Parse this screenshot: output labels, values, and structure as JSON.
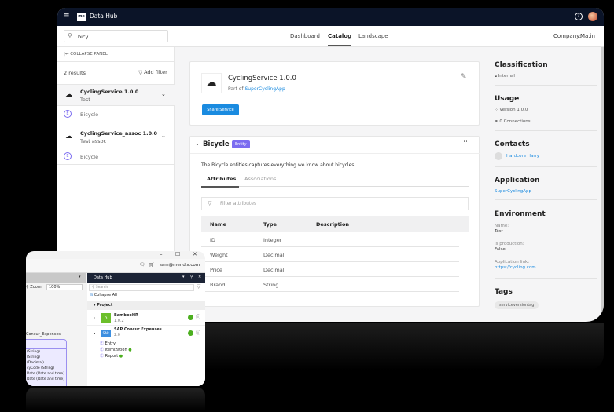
{
  "app": {
    "title": "Data Hub",
    "logo": "mx"
  },
  "search": {
    "value": "bicy"
  },
  "nav": {
    "tabs": [
      {
        "label": "Dashboard"
      },
      {
        "label": "Catalog",
        "active": true
      },
      {
        "label": "Landscape"
      }
    ],
    "company_label": "Company:",
    "company_value": "Ma.in"
  },
  "left_panel": {
    "collapse_label": "COLLAPSE PANEL",
    "results": "2 results",
    "add_filter": "Add filter",
    "items": [
      {
        "title": "CyclingService 1.0.0",
        "subtitle": "Test",
        "entity": "Bicycle"
      },
      {
        "title": "CyclingService_assoc 1.0.0",
        "subtitle": "Test assoc",
        "entity": "Bicycle"
      }
    ]
  },
  "service": {
    "title": "CyclingService 1.0.0",
    "part_of_label": "Part of",
    "app_link": "SuperCyclingApp",
    "share_button": "Share Service"
  },
  "entity": {
    "name": "Bicycle",
    "badge": "Entity",
    "description": "The Bicycle entities captures everything we know about bicycles.",
    "tabs": [
      "Attributes",
      "Associations"
    ],
    "filter_placeholder": "Filter attributes",
    "columns": [
      "Name",
      "Type",
      "Description"
    ],
    "rows": [
      {
        "name": "ID",
        "type": "Integer"
      },
      {
        "name": "Weight",
        "type": "Decimal"
      },
      {
        "name": "Price",
        "type": "Decimal"
      },
      {
        "name": "Brand",
        "type": "String"
      }
    ]
  },
  "sidebar": {
    "classification": {
      "title": "Classification",
      "value": "Internal"
    },
    "usage": {
      "title": "Usage",
      "version": "Version 1.0.0",
      "connections": "0 Connections"
    },
    "contacts": {
      "title": "Contacts",
      "name": "Hardcore Harry"
    },
    "application": {
      "title": "Application",
      "value": "SuperCyclingApp"
    },
    "environment": {
      "title": "Environment",
      "name_label": "Name:",
      "name": "Test",
      "prod_label": "Is production:",
      "prod": "False",
      "link_label": "Application link:",
      "link": "https://cycling.com"
    },
    "tags": {
      "title": "Tags",
      "tag": "serviceversiontag"
    }
  },
  "studio": {
    "account": "sam@mendix.com",
    "zoom_label": "Zoom",
    "zoom_value": "100%",
    "panel_title": "Data Hub",
    "search_placeholder": "Search",
    "collapse_all": "Collapse All",
    "project": "Project",
    "services": [
      {
        "name": "BambooHR",
        "version": "1.0.2"
      },
      {
        "name": "SAP Concur Expenses",
        "version": "2.0"
      }
    ],
    "entities": [
      "Entry",
      "Itemization",
      "Report"
    ],
    "domain_title": "Concur_Expenses",
    "domain_attrs": [
      "(String)",
      "(String)",
      "(Decimal)",
      "cyCode (String)",
      "Date (Date and time)",
      "Date (Date and time)"
    ]
  },
  "colors": {
    "topbar": "#0b1428",
    "accent": "#1a8be0",
    "entity_badge": "#7b6cf0",
    "green": "#4caf1f"
  }
}
